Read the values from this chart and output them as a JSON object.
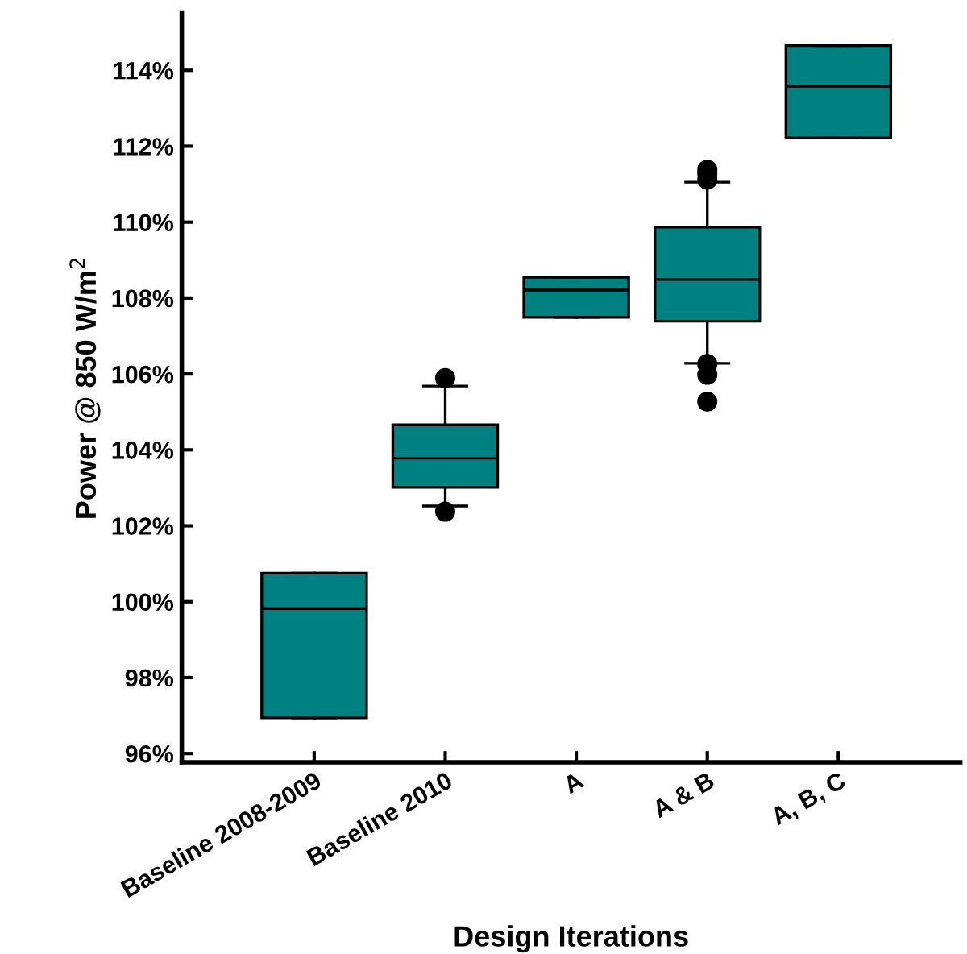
{
  "chart_data": {
    "type": "box",
    "xlabel": "Design Iterations",
    "ylabel": "Power @ 850 W/m$^{2}$",
    "categories": [
      "Baseline 2008-2009",
      "Baseline 2010",
      "A",
      "A & B",
      "A, B, C"
    ],
    "color": "#008080",
    "boxes": [
      {
        "low": 96.94,
        "q1": 96.94,
        "median": 99.82,
        "q3": 100.75,
        "high": 100.75
      },
      {
        "low": 102.52,
        "q1": 103.01,
        "median": 103.78,
        "q3": 104.66,
        "high": 105.68,
        "outliers": [
          105.89,
          102.37
        ]
      },
      {
        "low": 107.49,
        "q1": 107.49,
        "median": 108.21,
        "q3": 108.55,
        "high": 108.55
      },
      {
        "low": 106.28,
        "q1": 107.39,
        "median": 108.49,
        "q3": 109.87,
        "high": 111.05,
        "outliers": [
          111.38,
          111.27,
          111.12,
          106.26,
          105.98,
          105.27
        ]
      },
      {
        "low": 112.22,
        "q1": 112.22,
        "median": 113.58,
        "q3": 114.65,
        "high": 114.65
      }
    ],
    "ylim": [
      95.77,
      115.5
    ],
    "yticks": [
      {
        "value": 96,
        "label": "96%"
      },
      {
        "value": 98,
        "label": "98%"
      },
      {
        "value": 100,
        "label": "100%"
      },
      {
        "value": 102,
        "label": "102%"
      },
      {
        "value": 104,
        "label": "104%"
      },
      {
        "value": 106,
        "label": "106%"
      },
      {
        "value": 108,
        "label": "108%"
      },
      {
        "value": 110,
        "label": "110%"
      },
      {
        "value": 112,
        "label": "112%"
      },
      {
        "value": 114,
        "label": "114%"
      }
    ],
    "grid": false,
    "legend": false
  }
}
